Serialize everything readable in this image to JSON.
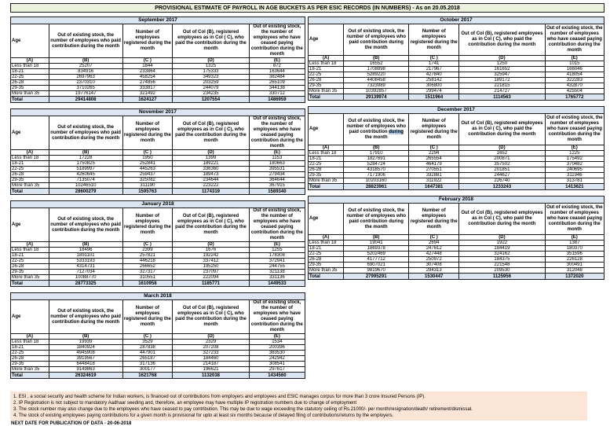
{
  "page_title": "PROVISIONAL ESTIMATE OF PAYROLL IN AGE BUCKETS AS PER ESIC RECORDS (IN NUMBERS) - As on 20.05.2018",
  "colors": {
    "title_bg": "#ebf1dd",
    "month_header_bg": "#dbe5f1",
    "total_row_bg": "#dbe5f1",
    "notes_bg": "#fbe5d6",
    "selection_highlight": "#a8c4e0",
    "border": "#1a1a1a"
  },
  "column_headers": {
    "age": "Age",
    "b": "Out of existing stock, the number of employees who paid contribution during the month",
    "c": "Number of employees registered during the month",
    "d": "Out of Col (B), registered employees as in Col ( C), who paid the contribution during the month",
    "e": "Out of existing stock, the number of  employees  who have ceased paying contribution during the month"
  },
  "letter_row": [
    "(A)",
    "(B)",
    "(C )",
    "(D)",
    "(E)"
  ],
  "age_groups": [
    "Less than 18",
    "18-21",
    "22-25",
    "26-28",
    "29-35",
    "More than 35"
  ],
  "total_label": "Total",
  "tables": [
    {
      "month": "September 2017",
      "rows": [
        [
          25207,
          1844,
          1325,
          872
        ],
        [
          834916,
          233864,
          175333,
          163644
        ],
        [
          2697963,
          458254,
          349323,
          382484
        ],
        [
          2370310,
          274856,
          203259,
          265109
        ],
        [
          3710265,
          333817,
          244079,
          344138
        ],
        [
          19776147,
          321492,
          234235,
          330712
        ]
      ],
      "total": [
        29414808,
        1624127,
        1207554,
        1486959
      ]
    },
    {
      "month": "October 2017",
      "rows": [
        [
          16552,
          1741,
          1250,
          1015
        ],
        [
          1708898,
          217967,
          161652,
          166046
        ],
        [
          5289220,
          427840,
          325947,
          418054
        ],
        [
          4408458,
          258142,
          189172,
          322283
        ],
        [
          7323989,
          306800,
          221815,
          432870
        ],
        [
          10392857,
          299474,
          214727,
          425504
        ]
      ],
      "total": [
        29139974,
        1511964,
        1114563,
        1765772
      ]
    },
    {
      "month": "November 2017",
      "rows": [
        [
          17228,
          1950,
          1399,
          1153
        ],
        [
          1750825,
          252841,
          189221,
          180663
        ],
        [
          5189997,
          445263,
          336360,
          395531
        ],
        [
          4260645,
          259437,
          189473,
          279434
        ],
        [
          7135074,
          325082,
          234644,
          364644
        ],
        [
          10246510,
          311190,
          223222,
          367915
        ]
      ],
      "total": [
        28600279,
        1595763,
        1174319,
        1589340
      ]
    },
    {
      "month": "December 2017",
      "highlight_word": "during",
      "rows": [
        [
          17910,
          2294,
          1652,
          1225
        ],
        [
          1827691,
          265554,
          200871,
          175492
        ],
        [
          5284724,
          464179,
          357502,
          370482
        ],
        [
          4318570,
          270551,
          201851,
          240695
        ],
        [
          7171906,
          332881,
          244627,
          311946
        ],
        [
          10203160,
          311922,
          226740,
          313781
        ]
      ],
      "total": [
        28823961,
        1647381,
        1233243,
        1413621
      ]
    },
    {
      "month": "January 2018",
      "rows": [
        [
          18496,
          2399,
          1676,
          1255
        ],
        [
          1891101,
          257821,
          192242,
          178308
        ],
        [
          5333193,
          446218,
          337412,
          372941
        ],
        [
          4314731,
          266652,
          195250,
          244755
        ],
        [
          7127034,
          327317,
          237097,
          321138
        ],
        [
          10088770,
          310551,
          222094,
          331136
        ]
      ],
      "total": [
        28773325,
        1610958,
        1185771,
        1449533
      ]
    },
    {
      "month": "February 2018",
      "rows": [
        [
          19041,
          2694,
          1922,
          1387
        ],
        [
          1869378,
          247612,
          184419,
          180370
        ],
        [
          5202469,
          427448,
          324162,
          351596
        ],
        [
          4177712,
          250972,
          184375,
          226128
        ],
        [
          6907021,
          307408,
          221548,
          300491
        ],
        [
          9819670,
          294313,
          209530,
          312048
        ]
      ],
      "total": [
        27995291,
        1530447,
        1125956,
        1372020
      ]
    },
    {
      "month": "March 2018",
      "rows": [
        [
          19939,
          3529,
          2329,
          1534
        ],
        [
          1840924,
          287838,
          207208,
          200396
        ],
        [
          4945908,
          447901,
          327233,
          383530
        ],
        [
          3919567,
          265187,
          184460,
          242942
        ],
        [
          6448418,
          317136,
          214187,
          308541
        ],
        [
          9149863,
          300177,
          196621,
          297617
        ]
      ],
      "total": [
        26324619,
        1621768,
        1132038,
        1434560
      ]
    }
  ],
  "notes": [
    "1. ESI , a social security and health scheme for Indian workers, is financed out of contributions from employers and employees and ESIC manages corpus for more than 3 crore Insured Persons (IP).",
    "2. IP Registration is not subject to mandatory Aadhaar seeding and, therefore, an employee may have multiple IP registration numbers due to change of employment",
    "3. The stock number may also change due to the employees who have ceased to pay contribution. This may  be due to wage exceeding the statutory ceiling of  Rs.21000/- per month/resignation/death/ retirement/dismissal.",
    "4. The stock of existing employees paying contributions for a given month is provisional for upto at least six months because of delayed filing of contributions/returns by the employers."
  ],
  "footer": "NEXT DATE FOR PUBLICATION OF DATA - 20-06-2018"
}
